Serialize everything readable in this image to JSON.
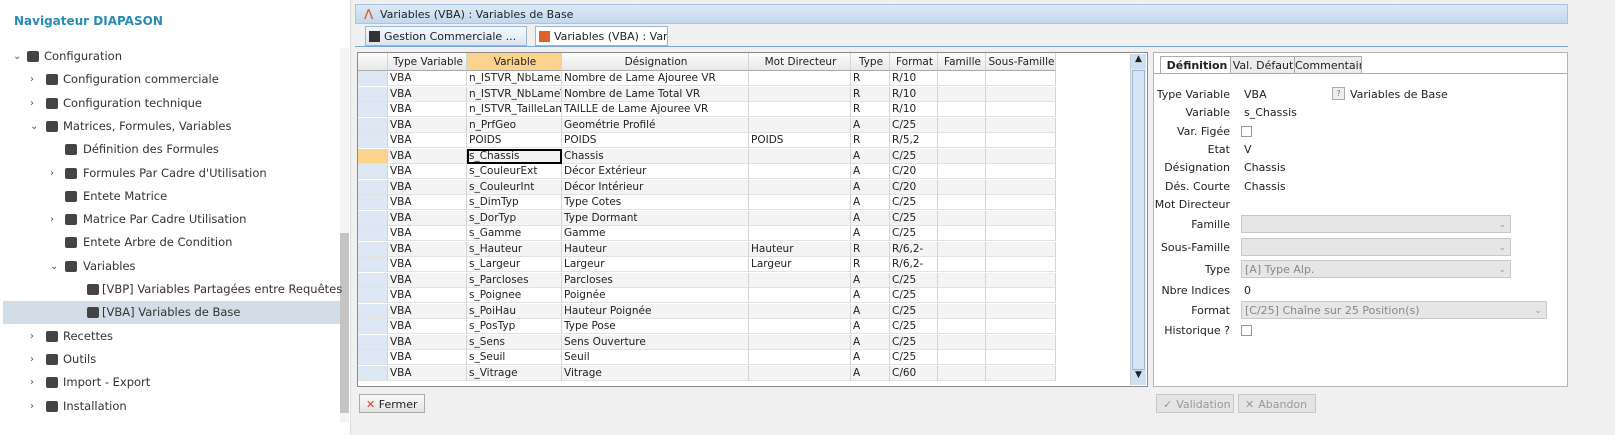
{
  "sidebar": {
    "title": "Navigateur DIAPASON",
    "tree": [
      {
        "label": "Configuration",
        "children": [
          {
            "label": "Configuration commerciale",
            "collapsed": true
          },
          {
            "label": "Configuration technique",
            "collapsed": true
          },
          {
            "label": "Matrices, Formules, Variables",
            "children": [
              {
                "label": "Définition des Formules"
              },
              {
                "label": "Formules Par Cadre d'Utilisation",
                "collapsed": true
              },
              {
                "label": "Entete Matrice"
              },
              {
                "label": "Matrice Par Cadre Utilisation",
                "collapsed": true
              },
              {
                "label": "Entete Arbre de Condition"
              },
              {
                "label": "Variables",
                "children": [
                  {
                    "label": "[VBP] Variables Partagées entre Requêtes"
                  },
                  {
                    "label": "[VBA] Variables de Base",
                    "selected": true
                  }
                ]
              }
            ]
          },
          {
            "label": "Recettes",
            "collapsed": true
          },
          {
            "label": "Outils",
            "collapsed": true
          },
          {
            "label": "Import - Export",
            "collapsed": true
          },
          {
            "label": "Installation",
            "collapsed": true
          }
        ]
      }
    ]
  },
  "window_title": "Variables (VBA) : Variables de Base",
  "tabs": [
    "Gestion Commerciale ...",
    "Variables (VBA) : Varia..."
  ],
  "table": {
    "columns": [
      "Type Variable",
      "Variable",
      "Désignation",
      "Mot Directeur",
      "Type",
      "Format",
      "Famille",
      "Sous-Famille"
    ],
    "selected_row": 5,
    "rows": [
      [
        "VBA",
        "n_ISTVR_NbLameA",
        "Nombre de Lame Ajouree VR",
        null,
        "R",
        "R/10",
        null,
        null
      ],
      [
        "VBA",
        "n_ISTVR_NbLameT",
        "Nombre de Lame Total VR",
        null,
        "R",
        "R/10",
        null,
        null
      ],
      [
        "VBA",
        "n_ISTVR_TailleLame",
        "TAILLE de Lame Ajouree VR",
        null,
        "R",
        "R/10",
        null,
        null
      ],
      [
        "VBA",
        "n_PrfGeo",
        "Geométrie Profilé",
        null,
        "A",
        "C/25",
        null,
        null
      ],
      [
        "VBA",
        "POIDS",
        "POIDS",
        "POIDS",
        "R",
        "R/5,2",
        null,
        null
      ],
      [
        "VBA",
        "s_Chassis",
        "Chassis",
        null,
        "A",
        "C/25",
        null,
        null
      ],
      [
        "VBA",
        "s_CouleurExt",
        "Décor Extérieur",
        null,
        "A",
        "C/20",
        null,
        null
      ],
      [
        "VBA",
        "s_CouleurInt",
        "Décor Intérieur",
        null,
        "A",
        "C/20",
        null,
        null
      ],
      [
        "VBA",
        "s_DimTyp",
        "Type Cotes",
        null,
        "A",
        "C/25",
        null,
        null
      ],
      [
        "VBA",
        "s_DorTyp",
        "Type Dormant",
        null,
        "A",
        "C/25",
        null,
        null
      ],
      [
        "VBA",
        "s_Gamme",
        "Gamme",
        null,
        "A",
        "C/25",
        null,
        null
      ],
      [
        "VBA",
        "s_Hauteur",
        "Hauteur",
        "Hauteur",
        "R",
        "R/6,2-",
        null,
        null
      ],
      [
        "VBA",
        "s_Largeur",
        "Largeur",
        "Largeur",
        "R",
        "R/6,2-",
        null,
        null
      ],
      [
        "VBA",
        "s_Parcloses",
        "Parcloses",
        null,
        "A",
        "C/25",
        null,
        null
      ],
      [
        "VBA",
        "s_Poignee",
        "Poignée",
        null,
        "A",
        "C/25",
        null,
        null
      ],
      [
        "VBA",
        "s_PoiHau",
        "Hauteur Poignée",
        null,
        "A",
        "C/25",
        null,
        null
      ],
      [
        "VBA",
        "s_PosTyp",
        "Type Pose",
        null,
        "A",
        "C/25",
        null,
        null
      ],
      [
        "VBA",
        "s_Sens",
        "Sens Ouverture",
        null,
        "A",
        "C/25",
        null,
        null
      ],
      [
        "VBA",
        "s_Seuil",
        "Seuil",
        null,
        "A",
        "C/25",
        null,
        null
      ],
      [
        "VBA",
        "s_Vitrage",
        "Vitrage",
        null,
        "A",
        "C/60",
        null,
        null
      ]
    ]
  },
  "close_button": "Fermer",
  "detail": {
    "tabs": [
      "Définition",
      "Val. Défaut",
      "Commentaire"
    ],
    "fields": [
      {
        "label": "Type Variable",
        "value": "VBA",
        "extra": "Variables de Base"
      },
      {
        "label": "Variable",
        "value": "s_Chassis"
      },
      {
        "label": "Var. Figée",
        "control": "checkbox"
      },
      {
        "label": "Etat",
        "value": "V"
      },
      {
        "label": "Désignation",
        "value": "Chassis"
      },
      {
        "label": "Dés. Courte",
        "value": "Chassis"
      },
      {
        "label": "Mot Directeur"
      },
      {
        "label": "Famille",
        "control": "combo"
      },
      {
        "label": "Sous-Famille",
        "control": "combo"
      },
      {
        "label": "Type",
        "control": "combo",
        "value": "[A] Type Alp."
      },
      {
        "label": "Nbre Indices",
        "value": "0"
      },
      {
        "label": "Format",
        "control": "combo-wide",
        "value": "[C/25] Chaîne sur 25 Position(s)"
      },
      {
        "label": "Historique ?",
        "control": "checkbox"
      }
    ],
    "buttons": [
      "Validation",
      "Abandon"
    ]
  }
}
